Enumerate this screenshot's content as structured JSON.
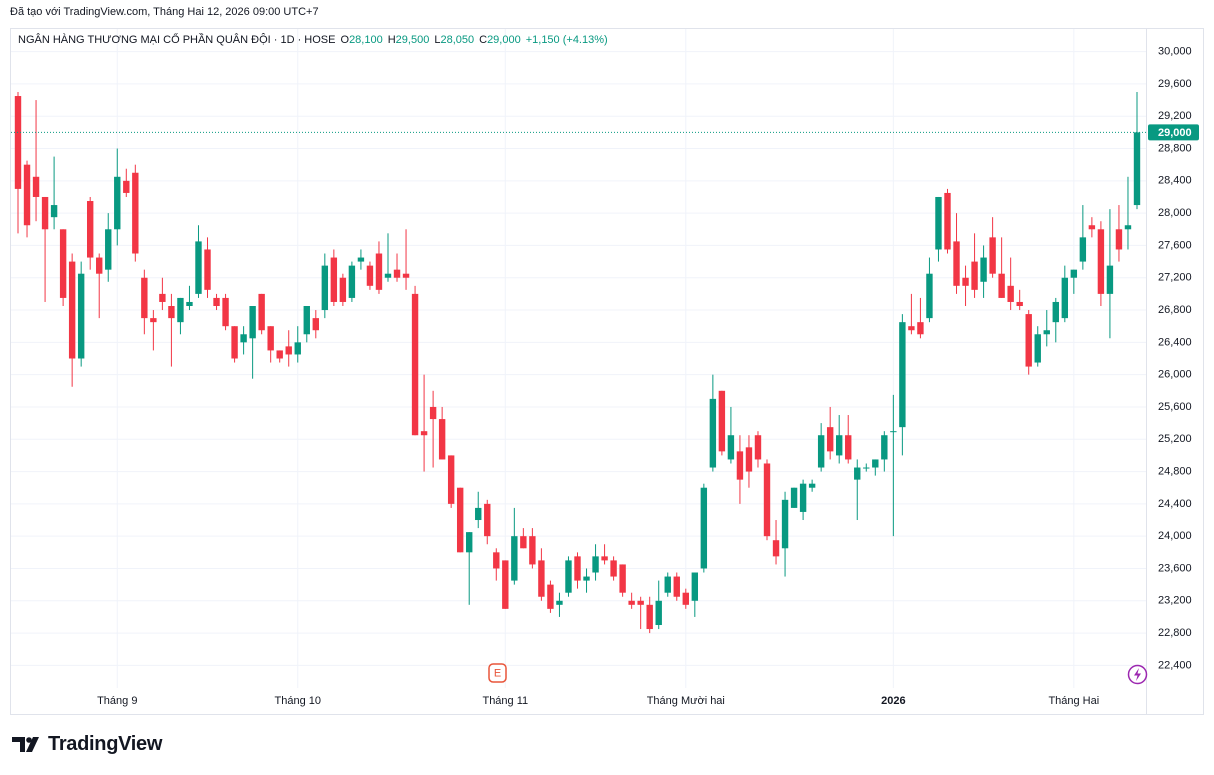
{
  "chart_data": {
    "type": "candlestick",
    "header": "Đã tạo với TradingView.com, Tháng Hai 12, 2026 09:00 UTC+7",
    "legend": {
      "symbol": "NGÂN HÀNG THƯƠNG MẠI CỔ PHẦN QUÂN ĐỘI · 1D · HOSE",
      "ohlc": [
        {
          "key": "O",
          "value": "28,100"
        },
        {
          "key": "H",
          "value": "29,500"
        },
        {
          "key": "L",
          "value": "28,050"
        },
        {
          "key": "C",
          "value": "29,000"
        }
      ],
      "change": "+1,150 (+4.13%)"
    },
    "brand": "TradingView",
    "earnings_marker": "E",
    "up_color": "#089981",
    "down_color": "#f23645",
    "grid": true,
    "categories": [
      null,
      null,
      null,
      null,
      null,
      null,
      null,
      null,
      null,
      null,
      null,
      "Tháng 9",
      null,
      null,
      null,
      null,
      null,
      null,
      null,
      null,
      null,
      null,
      null,
      null,
      null,
      null,
      null,
      null,
      null,
      null,
      null,
      "Tháng 10",
      null,
      null,
      null,
      null,
      null,
      null,
      null,
      null,
      null,
      null,
      null,
      null,
      null,
      null,
      null,
      null,
      null,
      null,
      null,
      null,
      null,
      null,
      "Tháng 11",
      null,
      null,
      null,
      null,
      null,
      null,
      null,
      null,
      null,
      null,
      null,
      null,
      null,
      null,
      null,
      null,
      null,
      null,
      null,
      "Tháng Mười hai",
      null,
      null,
      null,
      null,
      null,
      null,
      null,
      null,
      null,
      null,
      null,
      null,
      null,
      null,
      null,
      null,
      null,
      null,
      null,
      null,
      null,
      null,
      "2026",
      null,
      null,
      null,
      null,
      null,
      null,
      null,
      null,
      null,
      null,
      null,
      null,
      null,
      null,
      null,
      null,
      null,
      null,
      null,
      "Tháng Hai",
      null,
      null,
      null,
      null,
      null,
      null,
      null
    ],
    "open": [
      29450,
      28600,
      28450,
      28200,
      27950,
      27800,
      27400,
      26200,
      28150,
      27450,
      27300,
      27800,
      28400,
      28500,
      27200,
      26700,
      27000,
      26850,
      26650,
      26850,
      27000,
      27550,
      26950,
      26950,
      26600,
      26400,
      26450,
      27000,
      26600,
      26300,
      26350,
      26250,
      26500,
      26700,
      26800,
      27450,
      27200,
      26950,
      27400,
      27350,
      27500,
      27200,
      27300,
      27250,
      27000,
      25300,
      25600,
      25450,
      25000,
      24600,
      23800,
      24200,
      24400,
      23800,
      23700,
      23450,
      24000,
      24000,
      23700,
      23400,
      23150,
      23300,
      23750,
      23450,
      23550,
      23750,
      23700,
      23650,
      23200,
      23200,
      23150,
      22900,
      23300,
      23500,
      23300,
      23200,
      23600,
      24850,
      25800,
      24950,
      25050,
      25100,
      25250,
      24900,
      23950,
      23850,
      24350,
      24300,
      24600,
      24850,
      25350,
      25000,
      25250,
      24700,
      24850,
      24850,
      24950,
      25300,
      25350,
      26600,
      26650,
      26700,
      27550,
      28250,
      27650,
      27200,
      27400,
      27150,
      27700,
      27250,
      27100,
      26900,
      26750,
      26150,
      26500,
      26650,
      26700,
      27200,
      27400,
      27850,
      27800,
      27000,
      27800,
      27800,
      28100
    ],
    "high": [
      29500,
      28650,
      29400,
      28200,
      28700,
      27800,
      27500,
      27400,
      28200,
      27500,
      28000,
      28800,
      28550,
      28600,
      27300,
      26800,
      27200,
      27000,
      26950,
      27100,
      27850,
      27700,
      27000,
      27000,
      26600,
      26600,
      26850,
      27000,
      26600,
      26300,
      26550,
      26600,
      26850,
      26800,
      27500,
      27550,
      27250,
      27400,
      27550,
      27400,
      27650,
      27750,
      27500,
      27800,
      27100,
      26000,
      25800,
      25600,
      25000,
      24600,
      24050,
      24550,
      24450,
      23850,
      23700,
      24350,
      24100,
      24100,
      23850,
      23450,
      23300,
      23750,
      23800,
      23600,
      23900,
      23900,
      23750,
      23650,
      23300,
      23250,
      23250,
      23450,
      23550,
      23550,
      23350,
      23550,
      24650,
      26000,
      25800,
      25600,
      25250,
      25250,
      25300,
      24950,
      24200,
      24550,
      24600,
      24700,
      24700,
      25400,
      25600,
      25500,
      25500,
      24950,
      24900,
      24950,
      25300,
      25750,
      26750,
      27000,
      26950,
      27450,
      28200,
      28300,
      28000,
      27350,
      27750,
      27600,
      27950,
      27700,
      27450,
      27050,
      26800,
      26600,
      26800,
      26950,
      27350,
      27300,
      28100,
      27950,
      27900,
      28050,
      28100,
      28450,
      29500
    ],
    "low": [
      27750,
      27700,
      27900,
      26900,
      27800,
      26850,
      25850,
      26100,
      27300,
      26700,
      27150,
      27600,
      28200,
      27400,
      26500,
      26300,
      26800,
      26100,
      26500,
      26800,
      26950,
      26950,
      26800,
      26550,
      26150,
      26250,
      25950,
      26500,
      26150,
      26150,
      26100,
      26150,
      26400,
      26450,
      26700,
      26850,
      26850,
      26900,
      27300,
      27050,
      27000,
      27150,
      27150,
      27050,
      25250,
      24800,
      24850,
      24950,
      24350,
      23800,
      23150,
      24100,
      23900,
      23450,
      23100,
      23400,
      23850,
      23600,
      23200,
      23050,
      23000,
      23250,
      23350,
      23300,
      23450,
      23650,
      23450,
      23250,
      23100,
      22850,
      22800,
      22850,
      23250,
      23200,
      23100,
      23000,
      23550,
      24800,
      25000,
      24900,
      24400,
      24600,
      24850,
      23950,
      23650,
      23500,
      24350,
      24200,
      24550,
      24800,
      24950,
      24900,
      24900,
      24200,
      24800,
      24750,
      24800,
      24000,
      25000,
      26500,
      26450,
      26650,
      27400,
      27500,
      27000,
      26850,
      26950,
      26950,
      27200,
      26950,
      26800,
      26800,
      26000,
      26100,
      26350,
      26400,
      26650,
      27000,
      27300,
      27700,
      26850,
      26450,
      27400,
      27550,
      28050
    ],
    "close": [
      28300,
      27850,
      28200,
      27800,
      28100,
      26950,
      26200,
      27250,
      27450,
      27250,
      27800,
      28450,
      28250,
      27500,
      26700,
      26650,
      26900,
      26700,
      26950,
      26900,
      27650,
      27050,
      26850,
      26600,
      26200,
      26500,
      26850,
      26550,
      26300,
      26200,
      26250,
      26400,
      26850,
      26550,
      27350,
      26900,
      26900,
      27350,
      27450,
      27100,
      27050,
      27250,
      27200,
      27200,
      25250,
      25250,
      25450,
      24950,
      24400,
      23800,
      24050,
      24350,
      24000,
      23600,
      23100,
      24000,
      23850,
      23650,
      23250,
      23100,
      23200,
      23700,
      23450,
      23500,
      23750,
      23700,
      23500,
      23300,
      23150,
      23150,
      22850,
      23200,
      23500,
      23250,
      23150,
      23550,
      24600,
      25700,
      25050,
      25250,
      24700,
      24800,
      24950,
      24000,
      23750,
      24450,
      24600,
      24650,
      24650,
      25250,
      25050,
      25250,
      24950,
      24850,
      24850,
      24950,
      25250,
      25300,
      26650,
      26550,
      26500,
      27250,
      28200,
      27550,
      27100,
      27100,
      27050,
      27450,
      27250,
      26950,
      26900,
      26850,
      26100,
      26500,
      26550,
      26900,
      27200,
      27300,
      27700,
      27800,
      27000,
      27350,
      27550,
      27850,
      29000
    ],
    "last_price": {
      "value": 29000,
      "label": "29,000"
    },
    "ylim": [
      22120,
      30280
    ],
    "yticks": [
      {
        "value": 22400,
        "label": "22,400"
      },
      {
        "value": 22800,
        "label": "22,800"
      },
      {
        "value": 23200,
        "label": "23,200"
      },
      {
        "value": 23600,
        "label": "23,600"
      },
      {
        "value": 24000,
        "label": "24,000"
      },
      {
        "value": 24400,
        "label": "24,400"
      },
      {
        "value": 24800,
        "label": "24,800"
      },
      {
        "value": 25200,
        "label": "25,200"
      },
      {
        "value": 25600,
        "label": "25,600"
      },
      {
        "value": 26000,
        "label": "26,000"
      },
      {
        "value": 26400,
        "label": "26,400"
      },
      {
        "value": 26800,
        "label": "26,800"
      },
      {
        "value": 27200,
        "label": "27,200"
      },
      {
        "value": 27600,
        "label": "27,600"
      },
      {
        "value": 28000,
        "label": "28,000"
      },
      {
        "value": 28400,
        "label": "28,400"
      },
      {
        "value": 28800,
        "label": "28,800"
      },
      {
        "value": 29200,
        "label": "29,200"
      },
      {
        "value": 29600,
        "label": "29,600"
      },
      {
        "value": 30000,
        "label": "30,000"
      }
    ]
  }
}
